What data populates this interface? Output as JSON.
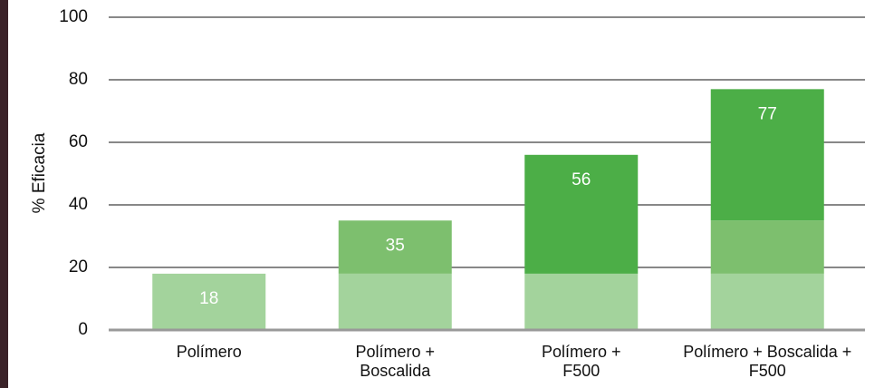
{
  "chart_data": {
    "type": "stacked-bar",
    "y_label": "% Eficacia",
    "categories": [
      "Polímero",
      "Polímero +\nBoscalida",
      "Polímero +\nF500",
      "Polímero + Boscalida +\nF500"
    ],
    "series": [
      {
        "color": "#a3d39c",
        "values": [
          18,
          18,
          18,
          18
        ]
      },
      {
        "color": "#7dbf6e",
        "values": [
          null,
          17,
          null,
          17
        ]
      },
      {
        "color": "#4cae47",
        "values": [
          null,
          null,
          38,
          42
        ]
      }
    ],
    "totals": [
      18,
      35,
      56,
      77
    ],
    "ylim": [
      0,
      100
    ],
    "yticks": [
      0,
      20,
      40,
      60,
      80,
      100
    ],
    "grid": true
  }
}
